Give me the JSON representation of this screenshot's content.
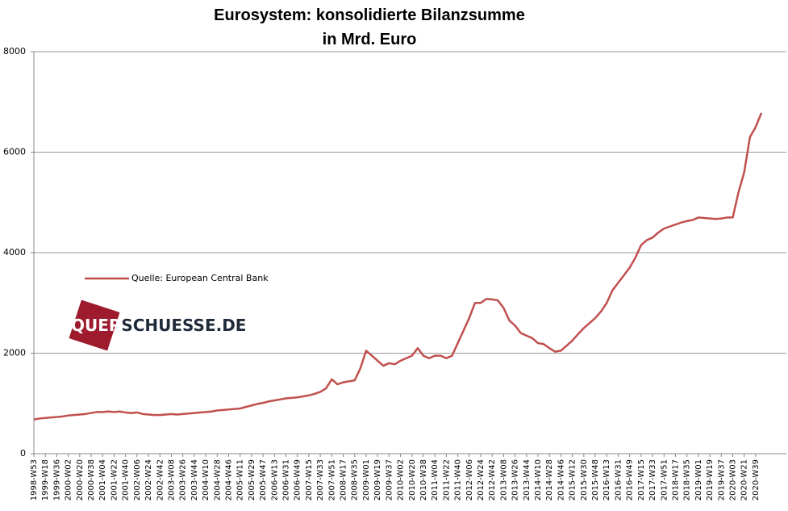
{
  "chart_data": {
    "type": "line",
    "title": "Eurosystem: konsolidierte Bilanzsumme",
    "subtitle": "in Mrd. Euro",
    "categories": [
      "1998-W53",
      null,
      "1999-W18",
      null,
      "1999-W36",
      null,
      "2000-W02",
      null,
      "2000-W20",
      null,
      "2000-W38",
      null,
      "2001-W04",
      null,
      "2001-W22",
      null,
      "2001-W40",
      null,
      "2002-W06",
      null,
      "2002-W24",
      null,
      "2002-W42",
      null,
      "2003-W08",
      null,
      "2003-W26",
      null,
      "2003-W44",
      null,
      "2004-W10",
      null,
      "2004-W28",
      null,
      "2004-W46",
      null,
      "2005-W11",
      null,
      "2005-W29",
      null,
      "2005-W47",
      null,
      "2006-W13",
      null,
      "2006-W31",
      null,
      "2006-W49",
      null,
      "2007-W15",
      null,
      "2007-W33",
      null,
      "2007-W51",
      null,
      "2008-W17",
      null,
      "2008-W35",
      null,
      "2009-W01",
      null,
      "2009-W19",
      null,
      "2009-W37",
      null,
      "2010-W02",
      null,
      "2010-W20",
      null,
      "2010-W38",
      null,
      "2011-W04",
      null,
      "2011-W22",
      null,
      "2011-W40",
      null,
      "2012-W06",
      null,
      "2012-W24",
      null,
      "2012-W42",
      null,
      "2013-W08",
      null,
      "2013-W26",
      null,
      "2013-W44",
      null,
      "2014-W10",
      null,
      "2014-W28",
      null,
      "2014-W46",
      null,
      "2015-W12",
      null,
      "2015-W30",
      null,
      "2015-W48",
      null,
      "2016-W13",
      null,
      "2016-W31",
      null,
      "2016-W49",
      null,
      "2017-W15",
      null,
      "2017-W33",
      null,
      "2017-W51",
      null,
      "2018-W17",
      null,
      "2018-W35",
      null,
      "2019-W01",
      null,
      "2019-W19",
      null,
      "2019-W37",
      null,
      "2020-W03",
      null,
      "2020-W21",
      null,
      "2020-W39",
      null
    ],
    "series": [
      {
        "name": "Quelle: European Central Bank",
        "color": "#c0504d",
        "values": [
          680,
          700,
          710,
          720,
          730,
          740,
          760,
          770,
          780,
          790,
          810,
          830,
          830,
          840,
          830,
          840,
          820,
          810,
          820,
          790,
          780,
          770,
          770,
          780,
          790,
          780,
          790,
          800,
          810,
          820,
          830,
          840,
          860,
          870,
          880,
          890,
          900,
          930,
          960,
          990,
          1010,
          1040,
          1060,
          1080,
          1100,
          1110,
          1120,
          1140,
          1160,
          1190,
          1230,
          1300,
          1480,
          1380,
          1420,
          1440,
          1460,
          1700,
          2050,
          1950,
          1850,
          1750,
          1800,
          1780,
          1850,
          1900,
          1950,
          2100,
          1950,
          1900,
          1950,
          1950,
          1900,
          1950,
          2200,
          2450,
          2700,
          3000,
          3000,
          3080,
          3070,
          3050,
          2900,
          2650,
          2550,
          2400,
          2350,
          2300,
          2200,
          2180,
          2100,
          2030,
          2050,
          2150,
          2250,
          2380,
          2500,
          2600,
          2700,
          2830,
          3000,
          3250,
          3400,
          3550,
          3700,
          3900,
          4150,
          4250,
          4300,
          4400,
          4480,
          4520,
          4560,
          4600,
          4630,
          4650,
          4700,
          4690,
          4680,
          4670,
          4680,
          4700,
          4700,
          5200,
          5600,
          6300,
          6500,
          6780
        ]
      }
    ],
    "ylim": [
      0,
      8000
    ],
    "yticks": [
      0,
      2000,
      4000,
      6000,
      8000
    ],
    "grid": true,
    "legend": "left"
  },
  "watermark": {
    "parts": [
      "QUER",
      "SCHUESSE.DE"
    ]
  }
}
